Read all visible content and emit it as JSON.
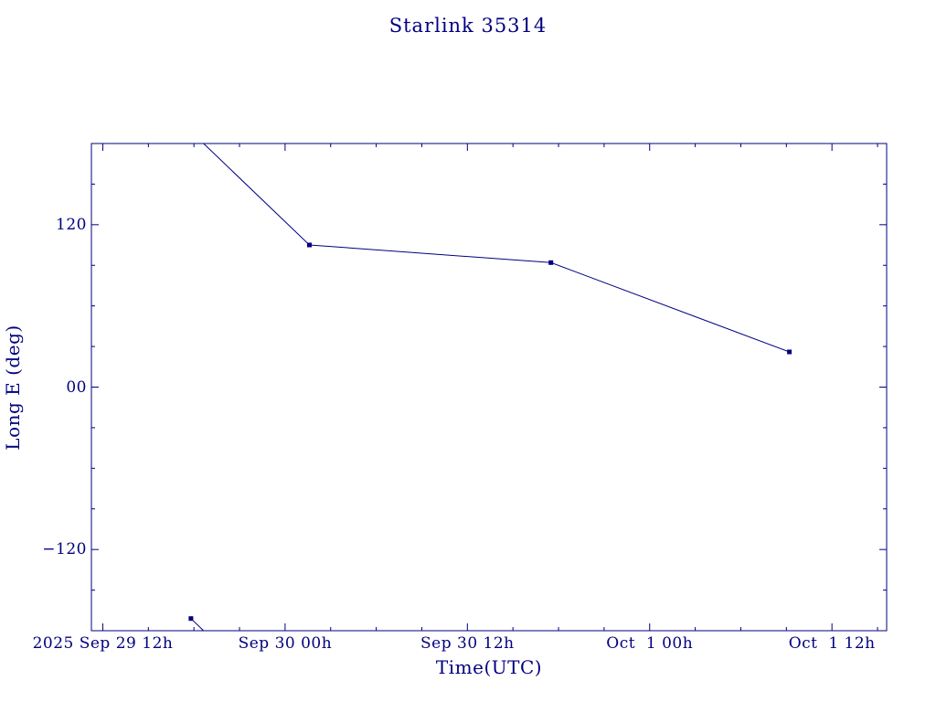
{
  "page": {
    "background": "#ffffff"
  },
  "chart_data": {
    "type": "line",
    "title": "Starlink 35314",
    "xlabel": "Time(UTC)",
    "ylabel": "Long E (deg)",
    "color": "#000080",
    "grid": false,
    "legend": "none",
    "xlim_hours": [
      -0.75,
      51.6
    ],
    "ylim": [
      -180,
      180
    ],
    "x_axis_epoch": "2025 Sep 29 12h UTC",
    "x_ticks": [
      {
        "hours": 0,
        "label": "2025 Sep 29 12h"
      },
      {
        "hours": 12,
        "label": "Sep 30 00h"
      },
      {
        "hours": 24,
        "label": "Sep 30 12h"
      },
      {
        "hours": 36,
        "label": "Oct  1 00h"
      },
      {
        "hours": 48,
        "label": "Oct  1 12h"
      }
    ],
    "x_minor_step_hours": 3,
    "y_ticks": [
      {
        "value": 120,
        "label": "120"
      },
      {
        "value": 0,
        "label": "00"
      },
      {
        "value": -120,
        "label": "−120"
      }
    ],
    "y_minor_step": 30,
    "series": [
      {
        "name": "Long E",
        "marker": "filled-square",
        "marker_size": 5,
        "wrap_degrees": 360,
        "points": [
          {
            "t_hours": 5.8,
            "time_utc": "2025 Sep 29 ~17:50",
            "long_e_deg": -171
          },
          {
            "t_hours": 13.6,
            "time_utc": "2025 Sep 30 ~01:35",
            "long_e_deg": 105
          },
          {
            "t_hours": 29.5,
            "time_utc": "2025 Sep 30 ~17:30",
            "long_e_deg": 92
          },
          {
            "t_hours": 45.2,
            "time_utc": "2025 Oct 1 ~09:10",
            "long_e_deg": 26
          }
        ]
      }
    ]
  }
}
